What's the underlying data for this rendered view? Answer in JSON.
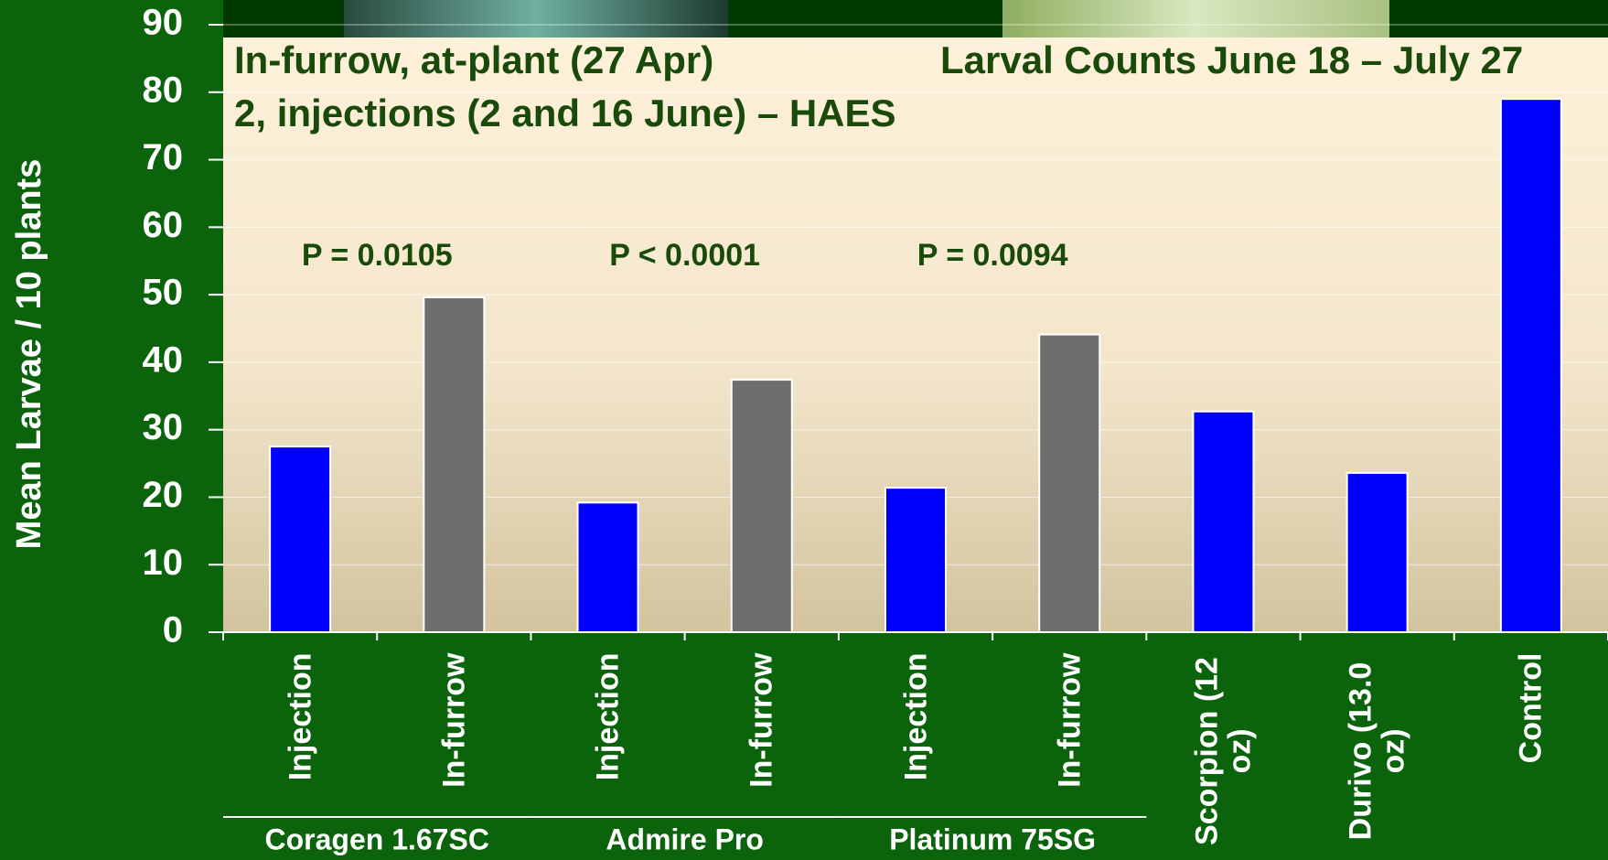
{
  "chart_data": {
    "type": "bar",
    "title_lines": [
      "In-furrow, at-plant (27 Apr)",
      "2, injections (2 and 16 June) – HAES"
    ],
    "subtitle": "Larval Counts June 18 – July 27",
    "y_label": "Mean Larvae / 10 plants",
    "categories": [
      "Injection",
      "In-furrow",
      "Injection",
      "In-furrow",
      "Injection",
      "In-furrow",
      "Scorpion (12 oz)",
      "Durivo (13.0 oz)",
      "Control"
    ],
    "values": [
      27.5,
      49.6,
      19.2,
      37.4,
      21.4,
      44.1,
      32.7,
      23.6,
      79.0
    ],
    "colors": [
      "#0000ff",
      "#6e6e6e",
      "#0000ff",
      "#6e6e6e",
      "#0000ff",
      "#6e6e6e",
      "#0000ff",
      "#0000ff",
      "#0000ff"
    ],
    "groups": [
      "Coragen 1.67SC",
      "Admire Pro",
      "Platinum 75SG"
    ],
    "annotations": [
      "P = 0.0105",
      "P < 0.0001",
      "P = 0.0094"
    ],
    "ylim": [
      0,
      90
    ],
    "yticks": [
      0,
      10,
      20,
      30,
      40,
      50,
      60,
      70,
      80,
      90
    ],
    "grid": true
  }
}
